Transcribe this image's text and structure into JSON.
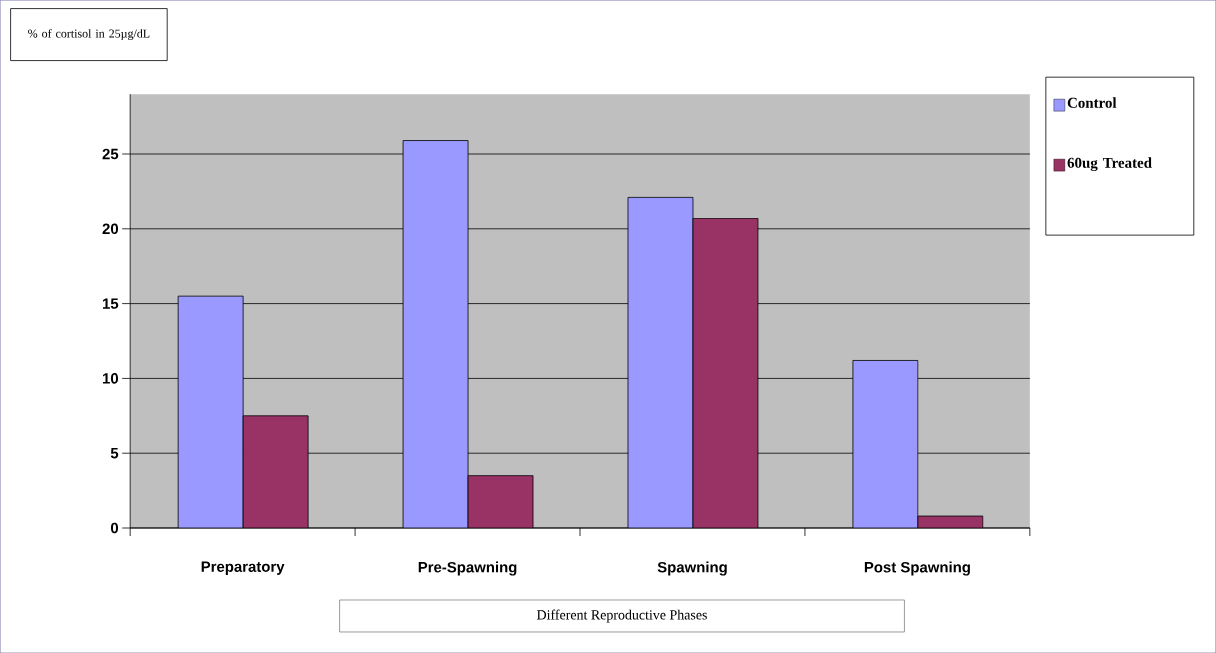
{
  "chart_data": {
    "type": "bar",
    "xlabel": "Different Reproductive Phases",
    "ylabel": "% of cortisol in 25µg/dL",
    "categories": [
      "Preparatory",
      "Pre-Spawning",
      "Spawning",
      "Post Spawning"
    ],
    "series": [
      {
        "name": "Control",
        "color": "#9999ff",
        "values": [
          15.5,
          25.9,
          22.1,
          11.2
        ]
      },
      {
        "name": "60ug Treated",
        "color": "#993366",
        "values": [
          7.5,
          3.5,
          20.7,
          0.8
        ]
      }
    ],
    "ylim": [
      0,
      29
    ],
    "yticks": [
      0,
      5,
      10,
      15,
      20,
      25
    ],
    "grid": "y",
    "legend": "top right"
  }
}
